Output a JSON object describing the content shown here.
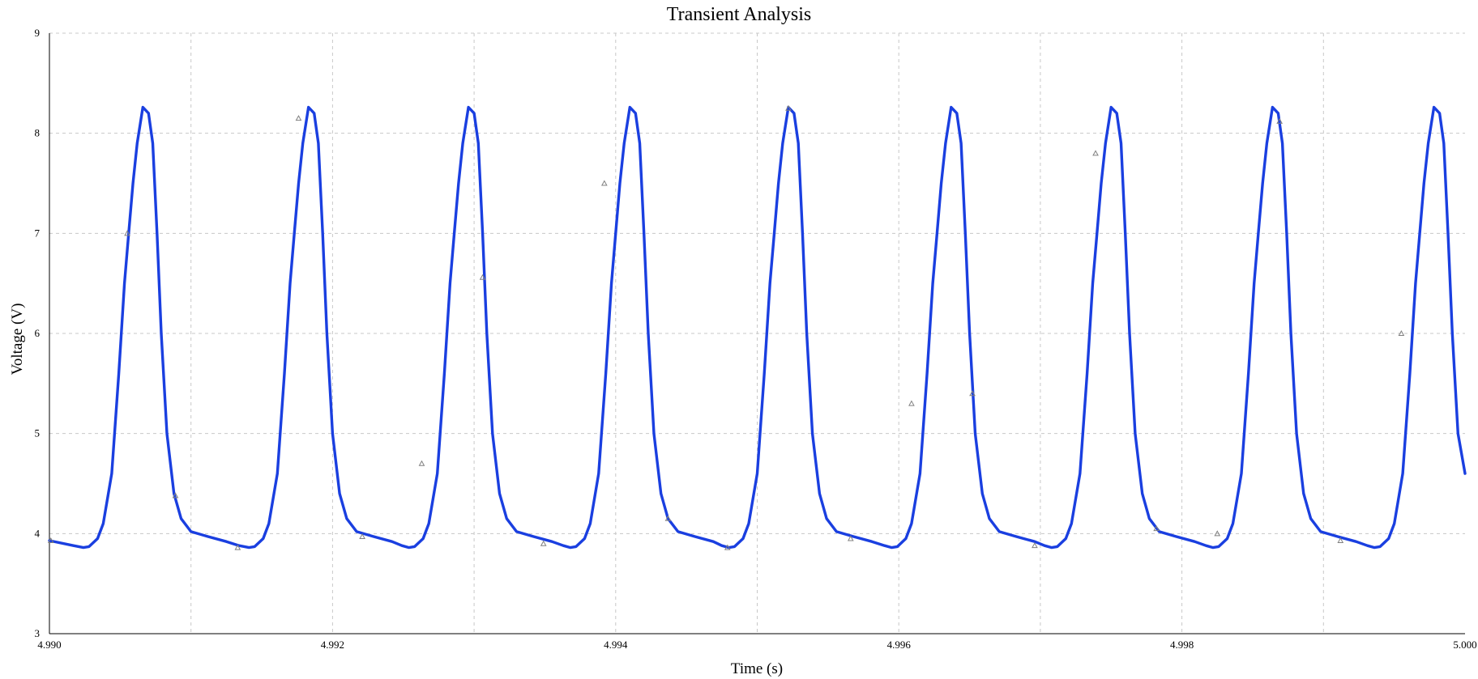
{
  "chart_data": {
    "type": "line",
    "title": "Transient Analysis",
    "xlabel": "Time (s)",
    "ylabel": "Voltage (V)",
    "xlim": [
      4.99,
      5.0
    ],
    "ylim": [
      3,
      9
    ],
    "x_ticks": [
      "4.990",
      "4.992",
      "4.994",
      "4.996",
      "4.998",
      "5.000"
    ],
    "x_tick_values": [
      4.99,
      4.992,
      4.994,
      4.996,
      4.998,
      5.0
    ],
    "x_minor_grid": [
      4.991,
      4.993,
      4.995,
      4.997,
      4.999
    ],
    "y_ticks": [
      "3",
      "4",
      "5",
      "6",
      "7",
      "8",
      "9"
    ],
    "y_tick_values": [
      3,
      4,
      5,
      6,
      7,
      8,
      9
    ],
    "grid": true,
    "legend": "none",
    "series_color": "#1a3fe0",
    "series": [
      {
        "peak_times": [
          4.99066,
          4.99183,
          4.99296,
          4.9941,
          4.99522,
          4.99637,
          4.9975,
          4.99864,
          4.99978
        ],
        "peak_value": 8.26,
        "min_value": 3.86,
        "points": [
          [
            4.99,
            3.93
          ],
          [
            4.99017,
            3.88
          ],
          [
            4.99024,
            3.86
          ],
          [
            4.99028,
            3.87
          ],
          [
            4.99034,
            3.95
          ],
          [
            4.99038,
            4.1
          ],
          [
            4.99044,
            4.6
          ],
          [
            4.99049,
            5.6
          ],
          [
            4.99053,
            6.5
          ],
          [
            4.99056,
            7.0
          ],
          [
            4.99059,
            7.5
          ],
          [
            4.99062,
            7.9
          ],
          [
            4.99066,
            8.26
          ],
          [
            4.9907,
            8.2
          ],
          [
            4.99073,
            7.9
          ],
          [
            4.99076,
            7.0
          ],
          [
            4.99079,
            6.0
          ],
          [
            4.99083,
            5.0
          ],
          [
            4.99088,
            4.4
          ],
          [
            4.99093,
            4.15
          ],
          [
            4.991,
            4.02
          ],
          [
            4.99112,
            3.97
          ],
          [
            4.99125,
            3.92
          ],
          [
            4.99134,
            3.88
          ],
          [
            4.99141,
            3.86
          ],
          [
            4.99145,
            3.87
          ],
          [
            4.99151,
            3.95
          ],
          [
            4.99155,
            4.1
          ],
          [
            4.99161,
            4.6
          ],
          [
            4.99166,
            5.6
          ],
          [
            4.9917,
            6.5
          ],
          [
            4.99173,
            7.0
          ],
          [
            4.99176,
            7.5
          ],
          [
            4.99179,
            7.9
          ],
          [
            4.99183,
            8.26
          ],
          [
            4.99187,
            8.2
          ],
          [
            4.9919,
            7.9
          ],
          [
            4.99193,
            7.0
          ],
          [
            4.99196,
            6.0
          ],
          [
            4.992,
            5.0
          ],
          [
            4.99205,
            4.4
          ],
          [
            4.9921,
            4.15
          ],
          [
            4.99217,
            4.02
          ],
          [
            4.99229,
            3.97
          ],
          [
            4.99242,
            3.92
          ],
          [
            4.99249,
            3.88
          ],
          [
            4.99254,
            3.86
          ],
          [
            4.99258,
            3.87
          ],
          [
            4.99264,
            3.95
          ],
          [
            4.99268,
            4.1
          ],
          [
            4.99274,
            4.6
          ],
          [
            4.99279,
            5.6
          ],
          [
            4.99283,
            6.5
          ],
          [
            4.99286,
            7.0
          ],
          [
            4.99289,
            7.5
          ],
          [
            4.99292,
            7.9
          ],
          [
            4.99296,
            8.26
          ],
          [
            4.993,
            8.2
          ],
          [
            4.99303,
            7.9
          ],
          [
            4.99306,
            7.0
          ],
          [
            4.99309,
            6.0
          ],
          [
            4.99313,
            5.0
          ],
          [
            4.99318,
            4.4
          ],
          [
            4.99323,
            4.15
          ],
          [
            4.9933,
            4.02
          ],
          [
            4.99342,
            3.97
          ],
          [
            4.99355,
            3.92
          ],
          [
            4.99363,
            3.88
          ],
          [
            4.99368,
            3.86
          ],
          [
            4.99372,
            3.87
          ],
          [
            4.99378,
            3.95
          ],
          [
            4.99382,
            4.1
          ],
          [
            4.99388,
            4.6
          ],
          [
            4.99393,
            5.6
          ],
          [
            4.99397,
            6.5
          ],
          [
            4.994,
            7.0
          ],
          [
            4.99403,
            7.5
          ],
          [
            4.99406,
            7.9
          ],
          [
            4.9941,
            8.26
          ],
          [
            4.99414,
            8.2
          ],
          [
            4.99417,
            7.9
          ],
          [
            4.9942,
            7.0
          ],
          [
            4.99423,
            6.0
          ],
          [
            4.99427,
            5.0
          ],
          [
            4.99432,
            4.4
          ],
          [
            4.99437,
            4.15
          ],
          [
            4.99444,
            4.02
          ],
          [
            4.99456,
            3.97
          ],
          [
            4.99469,
            3.92
          ],
          [
            4.99475,
            3.88
          ],
          [
            4.9948,
            3.86
          ],
          [
            4.99484,
            3.87
          ],
          [
            4.9949,
            3.95
          ],
          [
            4.99494,
            4.1
          ],
          [
            4.995,
            4.6
          ],
          [
            4.99505,
            5.6
          ],
          [
            4.99509,
            6.5
          ],
          [
            4.99512,
            7.0
          ],
          [
            4.99515,
            7.5
          ],
          [
            4.99518,
            7.9
          ],
          [
            4.99522,
            8.26
          ],
          [
            4.99526,
            8.2
          ],
          [
            4.99529,
            7.9
          ],
          [
            4.99532,
            7.0
          ],
          [
            4.99535,
            6.0
          ],
          [
            4.99539,
            5.0
          ],
          [
            4.99544,
            4.4
          ],
          [
            4.99549,
            4.15
          ],
          [
            4.99556,
            4.02
          ],
          [
            4.99568,
            3.97
          ],
          [
            4.99581,
            3.92
          ],
          [
            4.9959,
            3.88
          ],
          [
            4.99595,
            3.86
          ],
          [
            4.99599,
            3.87
          ],
          [
            4.99605,
            3.95
          ],
          [
            4.99609,
            4.1
          ],
          [
            4.99615,
            4.6
          ],
          [
            4.9962,
            5.6
          ],
          [
            4.99624,
            6.5
          ],
          [
            4.99627,
            7.0
          ],
          [
            4.9963,
            7.5
          ],
          [
            4.99633,
            7.9
          ],
          [
            4.99637,
            8.26
          ],
          [
            4.99641,
            8.2
          ],
          [
            4.99644,
            7.9
          ],
          [
            4.99647,
            7.0
          ],
          [
            4.9965,
            6.0
          ],
          [
            4.99654,
            5.0
          ],
          [
            4.99659,
            4.4
          ],
          [
            4.99664,
            4.15
          ],
          [
            4.99671,
            4.02
          ],
          [
            4.99683,
            3.97
          ],
          [
            4.99696,
            3.92
          ],
          [
            4.99703,
            3.88
          ],
          [
            4.99708,
            3.86
          ],
          [
            4.99712,
            3.87
          ],
          [
            4.99718,
            3.95
          ],
          [
            4.99722,
            4.1
          ],
          [
            4.99728,
            4.6
          ],
          [
            4.99733,
            5.6
          ],
          [
            4.99737,
            6.5
          ],
          [
            4.9974,
            7.0
          ],
          [
            4.99743,
            7.5
          ],
          [
            4.99746,
            7.9
          ],
          [
            4.9975,
            8.26
          ],
          [
            4.99754,
            8.2
          ],
          [
            4.99757,
            7.9
          ],
          [
            4.9976,
            7.0
          ],
          [
            4.99763,
            6.0
          ],
          [
            4.99767,
            5.0
          ],
          [
            4.99772,
            4.4
          ],
          [
            4.99777,
            4.15
          ],
          [
            4.99784,
            4.02
          ],
          [
            4.99796,
            3.97
          ],
          [
            4.99809,
            3.92
          ],
          [
            4.99817,
            3.88
          ],
          [
            4.99822,
            3.86
          ],
          [
            4.99826,
            3.87
          ],
          [
            4.99832,
            3.95
          ],
          [
            4.99836,
            4.1
          ],
          [
            4.99842,
            4.6
          ],
          [
            4.99847,
            5.6
          ],
          [
            4.99851,
            6.5
          ],
          [
            4.99854,
            7.0
          ],
          [
            4.99857,
            7.5
          ],
          [
            4.9986,
            7.9
          ],
          [
            4.99864,
            8.26
          ],
          [
            4.99868,
            8.2
          ],
          [
            4.99871,
            7.9
          ],
          [
            4.99874,
            7.0
          ],
          [
            4.99877,
            6.0
          ],
          [
            4.99881,
            5.0
          ],
          [
            4.99886,
            4.4
          ],
          [
            4.99891,
            4.15
          ],
          [
            4.99898,
            4.02
          ],
          [
            4.9991,
            3.97
          ],
          [
            4.99923,
            3.92
          ],
          [
            4.99931,
            3.88
          ],
          [
            4.99936,
            3.86
          ],
          [
            4.9994,
            3.87
          ],
          [
            4.99946,
            3.95
          ],
          [
            4.9995,
            4.1
          ],
          [
            4.99956,
            4.6
          ],
          [
            4.99961,
            5.6
          ],
          [
            4.99965,
            6.5
          ],
          [
            4.99968,
            7.0
          ],
          [
            4.99971,
            7.5
          ],
          [
            4.99974,
            7.9
          ],
          [
            4.99978,
            8.26
          ],
          [
            4.99982,
            8.2
          ],
          [
            4.99985,
            7.9
          ],
          [
            4.99988,
            7.0
          ],
          [
            4.99991,
            6.0
          ],
          [
            4.99995,
            5.0
          ],
          [
            5.0,
            4.6
          ]
        ]
      }
    ],
    "markers": [
      [
        4.99001,
        3.93
      ],
      [
        4.99055,
        7.0
      ],
      [
        4.99089,
        4.38
      ],
      [
        4.99133,
        3.86
      ],
      [
        4.99176,
        8.15
      ],
      [
        4.99221,
        3.97
      ],
      [
        4.99263,
        4.7
      ],
      [
        4.99306,
        6.56
      ],
      [
        4.99349,
        3.9
      ],
      [
        4.99392,
        7.5
      ],
      [
        4.99437,
        4.15
      ],
      [
        4.99479,
        3.86
      ],
      [
        4.99522,
        8.25
      ],
      [
        4.99566,
        3.95
      ],
      [
        4.99609,
        5.3
      ],
      [
        4.99652,
        5.4
      ],
      [
        4.99696,
        3.88
      ],
      [
        4.99739,
        7.8
      ],
      [
        4.99782,
        4.05
      ],
      [
        4.99825,
        4.0
      ],
      [
        4.99869,
        8.12
      ],
      [
        4.99912,
        3.93
      ],
      [
        4.99955,
        6.0
      ]
    ]
  }
}
